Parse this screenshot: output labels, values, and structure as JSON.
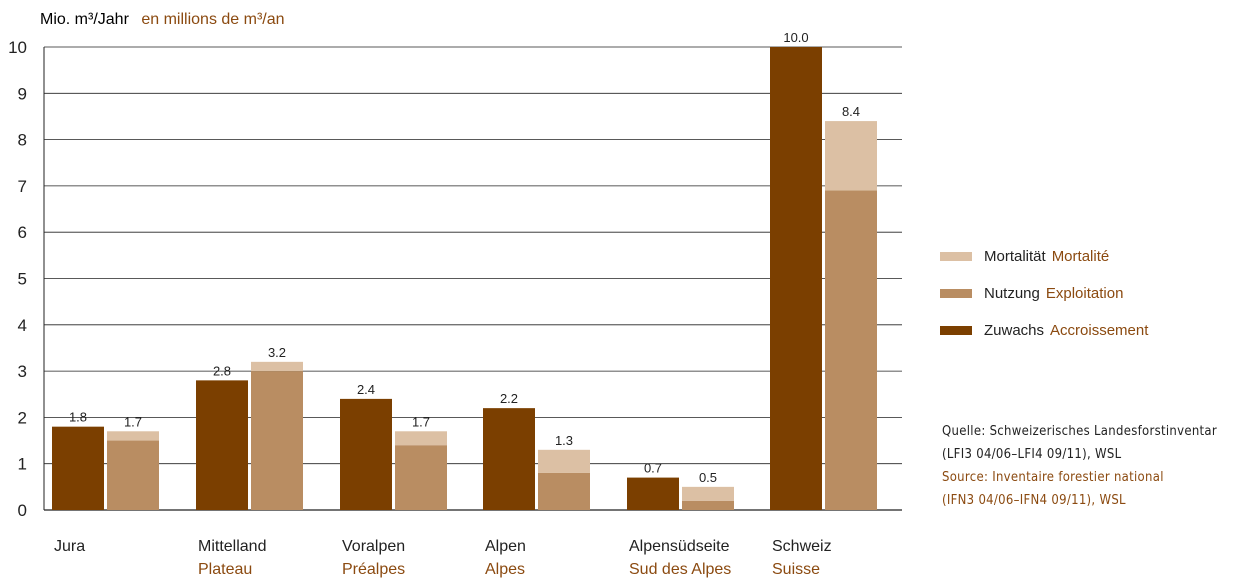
{
  "colors": {
    "zuwachs": "#7b3f00",
    "nutzung": "#b98d62",
    "mortalitaet": "#dcc0a4",
    "french_text": "#8b4a10",
    "axis": "#222222"
  },
  "ylabel_de": "Mio. m³/Jahr",
  "ylabel_fr": "en millions de m³/an",
  "chart_data": {
    "type": "bar",
    "stacked_second_bar": true,
    "ylim": [
      0,
      10
    ],
    "yticks": [
      "0",
      "1",
      "2",
      "3",
      "4",
      "5",
      "6",
      "7",
      "8",
      "9",
      "10"
    ],
    "grid": true,
    "legend_position": "right",
    "categories": [
      {
        "de": "Jura",
        "fr": ""
      },
      {
        "de": "Mittelland",
        "fr": "Plateau"
      },
      {
        "de": "Voralpen",
        "fr": "Préalpes"
      },
      {
        "de": "Alpen",
        "fr": "Alpes"
      },
      {
        "de": "Alpensüdseite",
        "fr": "Sud des Alpes"
      },
      {
        "de": "Schweiz",
        "fr": "Suisse"
      }
    ],
    "series": [
      {
        "name": "Zuwachs",
        "name_fr": "Accroissement",
        "values": [
          1.8,
          2.8,
          2.4,
          2.2,
          0.7,
          10.0
        ]
      },
      {
        "name": "Nutzung",
        "name_fr": "Exploitation",
        "values": [
          1.5,
          3.0,
          1.4,
          0.8,
          0.2,
          6.9
        ]
      },
      {
        "name": "Mortalität",
        "name_fr": "Mortalité",
        "values": [
          0.2,
          0.2,
          0.3,
          0.5,
          0.3,
          1.5
        ]
      }
    ],
    "zuwachs_labels": [
      "1.8",
      "2.8",
      "2.4",
      "2.2",
      "0.7",
      "10.0"
    ],
    "total_labels": [
      "1.7",
      "3.2",
      "1.7",
      "1.3",
      "0.5",
      "8.4"
    ]
  },
  "legend": [
    {
      "de": "Mortalität",
      "fr": "Mortalité",
      "color_key": "mortalitaet"
    },
    {
      "de": "Nutzung",
      "fr": "Exploitation",
      "color_key": "nutzung"
    },
    {
      "de": "Zuwachs",
      "fr": "Accroissement",
      "color_key": "zuwachs"
    }
  ],
  "source": {
    "line1": "Quelle: Schweizerisches Landesforstinventar",
    "line2": "(LFI3 04/06–LFI4 09/11), WSL",
    "line3": "Source: Inventaire forestier national",
    "line4": "(IFN3 04/06–IFN4 09/11), WSL"
  }
}
